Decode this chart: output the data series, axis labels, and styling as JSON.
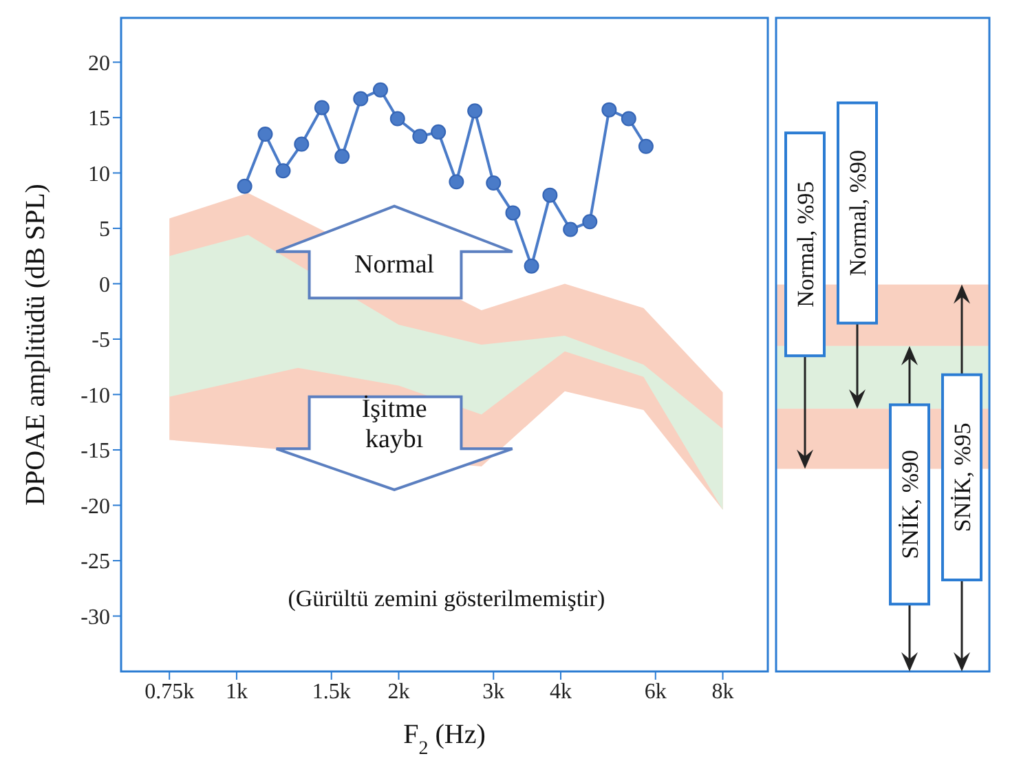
{
  "chart_data": [
    {
      "type": "line",
      "log": "x",
      "xlabel": "F$_{2}$ (Hz)",
      "ylabel": "DPOAE amplitüdü (dB SPL)",
      "xlim": [
        610,
        9700
      ],
      "xticks": [
        {
          "value": 750,
          "label": "0.75k"
        },
        {
          "value": 1000,
          "label": "1k"
        },
        {
          "value": 1500,
          "label": "1.5k"
        },
        {
          "value": 2000,
          "label": "2k"
        },
        {
          "value": 3000,
          "label": "3k"
        },
        {
          "value": 4000,
          "label": "4k"
        },
        {
          "value": 6000,
          "label": "6k"
        },
        {
          "value": 8000,
          "label": "8k"
        }
      ],
      "ylim": [
        -35,
        24
      ],
      "yticks": [
        -30,
        -25,
        -20,
        -15,
        -10,
        -5,
        0,
        5,
        10,
        15,
        20
      ],
      "marker": "circle",
      "annotations": [
        "Normal",
        "İşitme kaybı",
        "(Gürültü zemini gösterilmemiştir)"
      ],
      "series": [
        {
          "type": "area",
          "color": "#f9d0c0",
          "x": [
            750,
            1050,
            2850,
            4070,
            5700,
            8000
          ],
          "values": [
            null,
            null,
            null,
            null,
            null,
            null
          ],
          "lower": [
            -14.1,
            -14.7,
            -16.5,
            -9.7,
            -11.4,
            -20.4
          ],
          "upper": [
            5.9,
            8.2,
            -2.4,
            0,
            -2.2,
            -9.8
          ]
        },
        {
          "type": "area",
          "color": "#deefdd",
          "x": [
            750,
            1050,
            1300,
            2000,
            2850,
            4070,
            5700,
            8000
          ],
          "values": [
            null,
            null,
            null,
            null,
            null,
            null,
            null,
            null
          ],
          "lower": [
            -10.2,
            -8.6,
            -7.6,
            -9.2,
            -11.8,
            -6.1,
            -8.4,
            -20.4
          ],
          "upper": [
            2.5,
            4.4,
            1.7,
            -3.7,
            -5.5,
            -4.7,
            -7.3,
            -13.1
          ]
        },
        {
          "type": "line",
          "color": "#4a7bc8",
          "x": [
            1035,
            1130,
            1220,
            1320,
            1440,
            1570,
            1700,
            1850,
            1990,
            2190,
            2370,
            2560,
            2770,
            3000,
            3260,
            3530,
            3820,
            4170,
            4530,
            4920,
            5350,
            5760
          ],
          "values": [
            8.8,
            13.5,
            10.2,
            12.6,
            15.9,
            11.5,
            16.7,
            17.5,
            14.9,
            13.3,
            13.7,
            9.2,
            15.6,
            9.1,
            6.4,
            1.6,
            8,
            4.9,
            5.6,
            15.7,
            14.9,
            12.4
          ]
        }
      ]
    },
    {
      "type": "other",
      "annotations": [
        "Normal, %95",
        "Normal, %90",
        "SNİK, %90",
        "SNİK, %95"
      ]
    }
  ]
}
